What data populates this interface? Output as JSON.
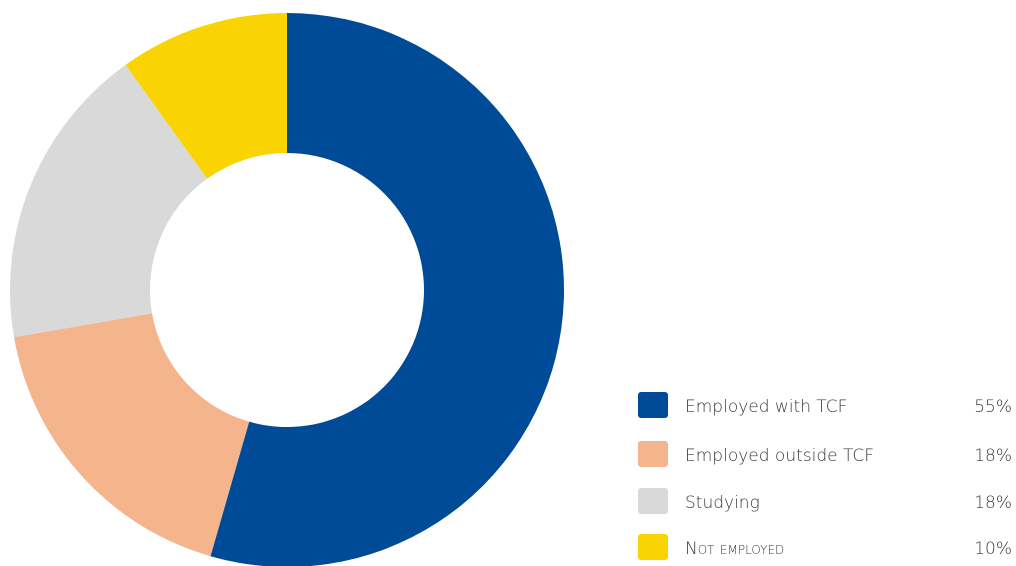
{
  "chart_data": {
    "type": "pie",
    "subtype": "donut",
    "title": "",
    "slices": [
      {
        "label": "Employed with TCF",
        "value": 55,
        "display": "55%",
        "color": "#004b98"
      },
      {
        "label": "Employed outside TCF",
        "value": 18,
        "display": "18%",
        "color": "#f4b58d"
      },
      {
        "label": "Studying",
        "value": 18,
        "display": "18%",
        "color": "#d9d9da"
      },
      {
        "label": "Not employed",
        "value": 10,
        "display": "10%",
        "color": "#fad402",
        "small_caps": true
      }
    ],
    "start_angle_deg": 0,
    "direction": "clockwise",
    "legend_placement": "bottom-right",
    "data_labels_on_slices": false
  }
}
